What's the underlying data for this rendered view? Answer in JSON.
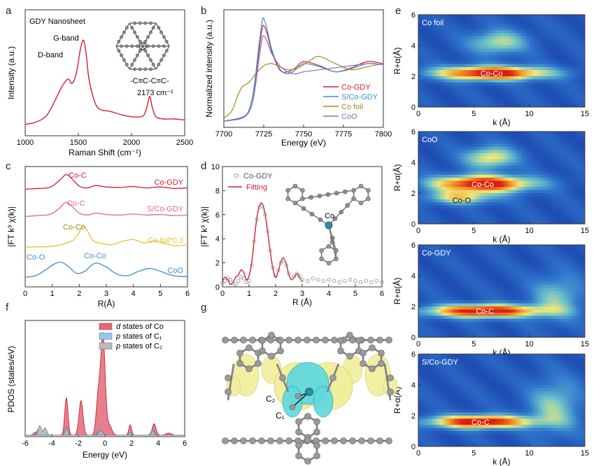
{
  "panel_letters": [
    "a",
    "b",
    "c",
    "d",
    "e",
    "f",
    "g"
  ],
  "colors": {
    "red": "#d2202f",
    "blue": "#3a8fd0",
    "olive": "#a08a1e",
    "purple": "#8a6fc0",
    "pink": "#e06a7a",
    "lightblue": "#9cc6ee",
    "gray": "#b9b9b9",
    "gold": "#e3c22f",
    "struct_gray": "#8c8c8c",
    "cobalt": "#2a8fa8",
    "iso_yellow": "#f1ee9c",
    "iso_cyan": "#5fd8df"
  },
  "chart_data": [
    {
      "id": "a",
      "type": "line",
      "xlabel": "Raman Shift (cm⁻¹)",
      "ylabel": "Intensity (a.u.)",
      "xlim": [
        1000,
        2500
      ],
      "xticks": [
        "1000",
        "1500",
        "2000",
        "2500"
      ],
      "annotations": {
        "sample": "GDY Nanosheet",
        "g_band": "G-band",
        "d_band": "D-band",
        "bond": "-C≡C-C≡C-",
        "peak": "2173 cm⁻¹"
      },
      "series": [
        {
          "name": "GDY Nanosheet",
          "x": [
            1000,
            1100,
            1200,
            1280,
            1340,
            1380,
            1410,
            1440,
            1480,
            1520,
            1550,
            1575,
            1600,
            1650,
            1700,
            1800,
            1900,
            2000,
            2080,
            2120,
            2150,
            2173,
            2195,
            2230,
            2300,
            2400,
            2500
          ],
          "y": [
            0.08,
            0.1,
            0.16,
            0.3,
            0.42,
            0.48,
            0.5,
            0.46,
            0.55,
            0.78,
            0.86,
            0.72,
            0.5,
            0.3,
            0.22,
            0.2,
            0.17,
            0.15,
            0.15,
            0.17,
            0.26,
            0.34,
            0.24,
            0.15,
            0.13,
            0.13,
            0.12
          ]
        }
      ]
    },
    {
      "id": "b",
      "type": "line",
      "xlabel": "Energy (eV)",
      "ylabel": "Normalized intensity (a.u.)",
      "xlim": [
        7700,
        7800
      ],
      "xticks": [
        "7700",
        "7725",
        "7750",
        "7775",
        "7800"
      ],
      "series": [
        {
          "name": "Co-GDY",
          "x": [
            7700,
            7710,
            7715,
            7718,
            7720,
            7722,
            7724,
            7725,
            7727,
            7730,
            7735,
            7740,
            7745,
            7750,
            7760,
            7770,
            7780,
            7790,
            7800
          ],
          "y": [
            0.02,
            0.05,
            0.1,
            0.25,
            0.45,
            0.7,
            0.92,
            0.95,
            0.88,
            0.7,
            0.52,
            0.5,
            0.54,
            0.6,
            0.56,
            0.5,
            0.54,
            0.6,
            0.58
          ]
        },
        {
          "name": "S/Co-GDY",
          "x": [
            7700,
            7710,
            7715,
            7718,
            7720,
            7722,
            7724,
            7725,
            7727,
            7730,
            7735,
            7740,
            7745,
            7750,
            7760,
            7770,
            7780,
            7790,
            7800
          ],
          "y": [
            0.02,
            0.05,
            0.1,
            0.26,
            0.48,
            0.76,
            0.99,
            1.02,
            0.92,
            0.72,
            0.53,
            0.48,
            0.52,
            0.58,
            0.55,
            0.5,
            0.53,
            0.58,
            0.57
          ]
        },
        {
          "name": "Co foil",
          "x": [
            7700,
            7705,
            7709,
            7712,
            7716,
            7720,
            7725,
            7730,
            7735,
            7740,
            7745,
            7750,
            7755,
            7760,
            7770,
            7780,
            7790,
            7800
          ],
          "y": [
            0.05,
            0.12,
            0.28,
            0.36,
            0.4,
            0.48,
            0.56,
            0.58,
            0.55,
            0.52,
            0.53,
            0.57,
            0.62,
            0.65,
            0.58,
            0.52,
            0.55,
            0.58
          ]
        },
        {
          "name": "CoO",
          "x": [
            7700,
            7710,
            7715,
            7718,
            7720,
            7722,
            7724,
            7725,
            7727,
            7730,
            7735,
            7740,
            7745,
            7750,
            7760,
            7770,
            7780,
            7790,
            7800
          ],
          "y": [
            0.02,
            0.04,
            0.09,
            0.2,
            0.38,
            0.62,
            0.82,
            0.85,
            0.8,
            0.68,
            0.56,
            0.5,
            0.48,
            0.5,
            0.52,
            0.54,
            0.56,
            0.58,
            0.57
          ]
        }
      ]
    },
    {
      "id": "c",
      "type": "line",
      "xlabel": "R(Å)",
      "ylabel": "|FT k³ χ(k)|",
      "xlim": [
        0,
        6
      ],
      "xticks": [
        "0",
        "1",
        "2",
        "3",
        "4",
        "5",
        "6"
      ],
      "series": [
        {
          "name": "Co-GDY",
          "label": "Co-GDY",
          "peak_label": "Co-C",
          "offset": 3,
          "x": [
            0,
            0.5,
            0.9,
            1.2,
            1.45,
            1.55,
            1.7,
            2.0,
            2.3,
            2.6,
            3.0,
            3.5,
            4.0,
            4.5,
            5.0,
            5.5,
            6.0
          ],
          "y": [
            0.05,
            0.08,
            0.12,
            0.35,
            0.62,
            0.66,
            0.52,
            0.18,
            0.1,
            0.2,
            0.14,
            0.12,
            0.16,
            0.1,
            0.14,
            0.08,
            0.1
          ]
        },
        {
          "name": "S/Co-GDY",
          "label": "S/Co-GDY",
          "peak_label": "Co-C",
          "offset": 2,
          "x": [
            0,
            0.5,
            0.9,
            1.2,
            1.45,
            1.55,
            1.7,
            2.0,
            2.3,
            2.6,
            3.0,
            3.5,
            4.0,
            4.5,
            5.0,
            5.5,
            6.0
          ],
          "y": [
            0.02,
            0.06,
            0.1,
            0.3,
            0.58,
            0.6,
            0.48,
            0.16,
            0.08,
            0.16,
            0.1,
            0.08,
            0.12,
            0.08,
            0.1,
            0.06,
            0.08
          ]
        },
        {
          "name": "Co foil*0.3",
          "label": "Co foil*0.3",
          "peak_label": "Co-Co",
          "offset": 1,
          "x": [
            0,
            0.5,
            1.0,
            1.5,
            1.8,
            2.0,
            2.15,
            2.3,
            2.5,
            2.8,
            3.2,
            3.6,
            4.0,
            4.4,
            4.8,
            5.2,
            5.6,
            6.0
          ],
          "y": [
            0.05,
            0.06,
            0.08,
            0.2,
            0.35,
            0.65,
            0.9,
            0.7,
            0.32,
            0.2,
            0.15,
            0.28,
            0.35,
            0.22,
            0.3,
            0.18,
            0.1,
            0.14
          ]
        },
        {
          "name": "CoO",
          "label": "CoO",
          "peak_labels": [
            "Co-O",
            "Co-Co"
          ],
          "offset": 0,
          "x": [
            0,
            0.4,
            0.8,
            1.1,
            1.35,
            1.6,
            1.9,
            2.2,
            2.5,
            2.7,
            3.0,
            3.4,
            3.8,
            4.2,
            4.6,
            5.0,
            5.4,
            5.8,
            6.0
          ],
          "y": [
            0.05,
            0.12,
            0.4,
            0.62,
            0.68,
            0.5,
            0.22,
            0.3,
            0.6,
            0.64,
            0.48,
            0.18,
            0.12,
            0.3,
            0.42,
            0.3,
            0.14,
            0.08,
            0.1
          ]
        }
      ]
    },
    {
      "id": "d",
      "type": "line",
      "xlabel": "R (Å)",
      "ylabel": "|FT k³ χ(k)|",
      "xlim": [
        0,
        6
      ],
      "ylim": [
        0,
        10
      ],
      "xticks": [
        "0",
        "1",
        "2",
        "3",
        "4",
        "5",
        "6"
      ],
      "yticks": [
        "0",
        "2",
        "4",
        "6",
        "8",
        "10"
      ],
      "legend": [
        "Co-GDY",
        "Fitting"
      ],
      "inset_label": "Co",
      "series": [
        {
          "name": "Co-GDY",
          "style": "markers",
          "x": [
            0,
            0.1,
            0.2,
            0.3,
            0.4,
            0.5,
            0.6,
            0.7,
            0.8,
            0.9,
            1.0,
            1.1,
            1.2,
            1.3,
            1.4,
            1.5,
            1.6,
            1.7,
            1.8,
            1.9,
            2.0,
            2.1,
            2.2,
            2.3,
            2.4,
            2.5,
            2.6,
            2.7,
            2.8,
            2.9,
            3.0,
            3.2,
            3.4,
            3.6,
            3.8,
            4.0,
            4.2,
            4.4,
            4.6,
            4.8,
            5.0,
            5.2,
            5.4,
            5.6,
            5.8,
            6.0
          ],
          "y": [
            0.3,
            0.5,
            0.7,
            0.6,
            0.3,
            0.2,
            0.5,
            0.8,
            0.7,
            0.4,
            0.5,
            1.8,
            3.8,
            5.6,
            6.6,
            6.7,
            6.0,
            4.6,
            3.0,
            1.6,
            0.9,
            1.4,
            2.0,
            2.2,
            1.8,
            1.1,
            0.7,
            0.9,
            1.1,
            0.9,
            0.6,
            0.5,
            0.7,
            0.6,
            0.5,
            0.6,
            0.5,
            0.4,
            0.5,
            0.6,
            0.5,
            0.4,
            0.5,
            0.4,
            0.5,
            0.4
          ]
        },
        {
          "name": "Fitting",
          "style": "line",
          "x": [
            0,
            0.1,
            0.2,
            0.3,
            0.4,
            0.5,
            0.6,
            0.7,
            0.8,
            0.9,
            1.0,
            1.1,
            1.2,
            1.3,
            1.4,
            1.5,
            1.6,
            1.7,
            1.8,
            1.9,
            2.0,
            2.1,
            2.2,
            2.3,
            2.4,
            2.5,
            2.6,
            2.7,
            2.8,
            2.9,
            3.0
          ],
          "y": [
            0.5,
            0.8,
            0.6,
            0.2,
            0.4,
            0.8,
            1.0,
            1.4,
            1.2,
            0.6,
            0.9,
            2.0,
            4.0,
            5.8,
            6.8,
            6.9,
            6.1,
            4.6,
            2.9,
            1.5,
            0.8,
            1.3,
            2.1,
            2.4,
            1.9,
            1.0,
            0.6,
            0.8,
            1.1,
            0.8,
            0.4
          ]
        }
      ]
    },
    {
      "id": "e",
      "type": "heatmap",
      "xlabel": "k (Å)",
      "ylabel": "R+α(Å)",
      "xlim": [
        0,
        15
      ],
      "ylim": [
        0,
        6
      ],
      "xticks": [
        "0",
        "5",
        "10",
        "15"
      ],
      "yticks": [
        "0",
        "2",
        "4",
        "6"
      ],
      "maps": [
        {
          "title": "Co foil",
          "peak_label": "Co-Co",
          "peak": {
            "k": 6.6,
            "r": 2.2,
            "wk": 3.6,
            "wr": 0.32,
            "amp": 1.0
          },
          "extra": [
            {
              "k": 7.2,
              "r": 4.2,
              "wk": 1.8,
              "wr": 0.55,
              "amp": 0.45
            }
          ]
        },
        {
          "title": "CoO",
          "peak_label": "Co-Co",
          "second_label": "Co-O",
          "peak": {
            "k": 5.8,
            "r": 2.6,
            "wk": 3.2,
            "wr": 0.38,
            "amp": 1.0
          },
          "extra": [
            {
              "k": 6.5,
              "r": 4.3,
              "wk": 1.6,
              "wr": 0.5,
              "amp": 0.55
            },
            {
              "k": 3.8,
              "r": 1.7,
              "wk": 2.2,
              "wr": 0.3,
              "amp": 0.5
            }
          ]
        },
        {
          "title": "Co-GDY",
          "peak_label": "Co-C",
          "peak": {
            "k": 6.0,
            "r": 1.7,
            "wk": 3.6,
            "wr": 0.3,
            "amp": 1.0
          },
          "extra": [
            {
              "k": 12.5,
              "r": 2.6,
              "wk": 1.6,
              "wr": 1.0,
              "amp": 0.35
            }
          ]
        },
        {
          "title": "S/Co-GDY",
          "peak_label": "Co-C",
          "peak": {
            "k": 5.6,
            "r": 1.6,
            "wk": 3.2,
            "wr": 0.3,
            "amp": 1.0
          },
          "extra": [
            {
              "k": 12.3,
              "r": 2.6,
              "wk": 1.6,
              "wr": 1.2,
              "amp": 0.38
            }
          ]
        }
      ]
    },
    {
      "id": "f",
      "type": "area",
      "xlabel": "Energy (eV)",
      "ylabel": "PDOS (states/eV)",
      "xlim": [
        -6,
        6
      ],
      "xticks": [
        "-6",
        "-4",
        "-2",
        "0",
        "2",
        "4",
        "6"
      ],
      "legend": [
        {
          "label": "d states of Co",
          "italic_symbol": "d",
          "suffix": " states of Co"
        },
        {
          "label": "p states of C₁",
          "italic_symbol": "p",
          "suffix": " states of C₁"
        },
        {
          "label": "p states of C₂",
          "italic_symbol": "p",
          "suffix": " states of C₂"
        }
      ],
      "series": [
        {
          "name": "d states of Co",
          "peaks": [
            [
              -5.2,
              0.03,
              0.15
            ],
            [
              -2.9,
              0.36,
              0.12
            ],
            [
              -1.8,
              0.33,
              0.15
            ],
            [
              -0.5,
              0.38,
              0.15
            ],
            [
              -0.15,
              0.95,
              0.16
            ],
            [
              0.3,
              0.1,
              0.2
            ],
            [
              1.9,
              0.1,
              0.1
            ],
            [
              3.7,
              0.11,
              0.14
            ],
            [
              4.8,
              0.02,
              0.2
            ]
          ]
        },
        {
          "name": "p states of C1",
          "peaks": [
            [
              -5.0,
              0.06,
              0.12
            ],
            [
              -4.6,
              0.04,
              0.12
            ],
            [
              -2.9,
              0.06,
              0.1
            ],
            [
              -0.4,
              0.04,
              0.15
            ],
            [
              1.9,
              0.03,
              0.1
            ],
            [
              3.6,
              0.06,
              0.12
            ]
          ]
        },
        {
          "name": "p states of C2",
          "peaks": [
            [
              -4.9,
              0.09,
              0.12
            ],
            [
              -4.5,
              0.07,
              0.12
            ],
            [
              -2.9,
              0.08,
              0.1
            ],
            [
              -0.3,
              0.05,
              0.15
            ],
            [
              3.6,
              0.04,
              0.12
            ]
          ]
        }
      ]
    }
  ],
  "panel_g": {
    "labels": [
      "C₂",
      "C₁"
    ]
  }
}
